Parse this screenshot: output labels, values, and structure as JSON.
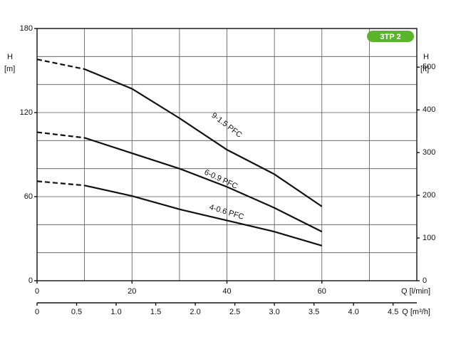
{
  "chart_data": {
    "type": "line",
    "badge": "3TP 2",
    "badge_color": "#5bb52a",
    "y_label": "H",
    "y_unit": "[m]",
    "y2_label": "H",
    "y2_unit": "[ft]",
    "x_label": "Q [l/min]",
    "x2_label": "Q [m³/h]",
    "xlim": [
      0,
      80
    ],
    "xticks": [
      0,
      20,
      40,
      60
    ],
    "xgrid": [
      0,
      10,
      20,
      30,
      40,
      50,
      60,
      70,
      80
    ],
    "ylim": [
      0,
      180
    ],
    "yticks": [
      0,
      60,
      120,
      180
    ],
    "ygrid": [
      0,
      20,
      40,
      60,
      80,
      100,
      120,
      140,
      160,
      180
    ],
    "y2lim": [
      0,
      590.55
    ],
    "y2ticks": [
      0,
      100,
      200,
      300,
      400,
      500
    ],
    "x2lim": [
      0,
      4.8
    ],
    "x2ticks": [
      0,
      0.5,
      {
        "value": 1.0,
        "label": "1.0"
      },
      1.5,
      {
        "value": 2.0,
        "label": "2.0"
      },
      2.5,
      {
        "value": 3.0,
        "label": "3.0"
      },
      3.5,
      {
        "value": 4.0,
        "label": "4.0"
      },
      4.5
    ],
    "dashed_until": 10,
    "x": [
      0,
      10,
      20,
      30,
      40,
      50,
      60
    ],
    "series": [
      {
        "name": "9-1.5 PFC",
        "color": "#111111",
        "values": [
          158,
          151,
          137,
          116,
          93.5,
          76,
          53
        ]
      },
      {
        "name": "6-0.9 PFC",
        "color": "#111111",
        "values": [
          106,
          102,
          91,
          80,
          67,
          52,
          35
        ]
      },
      {
        "name": "4-0.6 PFC",
        "color": "#111111",
        "values": [
          71,
          68,
          60.5,
          51,
          43,
          35,
          25
        ]
      }
    ]
  }
}
